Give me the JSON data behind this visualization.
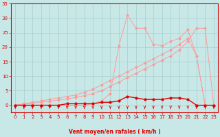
{
  "xlabel": "Vent moyen/en rafales ( km/h )",
  "bg_color": "#c8e8e8",
  "grid_color": "#a8cccc",
  "line_color_dark": "#dd0000",
  "line_color_light": "#ff9999",
  "xlim_min": -0.5,
  "xlim_max": 23.5,
  "ylim_min": 0,
  "ylim_max": 35,
  "yticks": [
    0,
    5,
    10,
    15,
    20,
    25,
    30,
    35
  ],
  "xticks": [
    0,
    1,
    2,
    3,
    4,
    5,
    6,
    7,
    8,
    9,
    10,
    11,
    12,
    13,
    14,
    15,
    16,
    17,
    18,
    19,
    20,
    21,
    22,
    23
  ],
  "x": [
    0,
    1,
    2,
    3,
    4,
    5,
    6,
    7,
    8,
    9,
    10,
    11,
    12,
    13,
    14,
    15,
    16,
    17,
    18,
    19,
    20,
    21,
    22,
    23
  ],
  "line_lin1": [
    0,
    0.5,
    1,
    1.5,
    2,
    2.5,
    3,
    3.5,
    4.5,
    5.5,
    7,
    8.5,
    10,
    11.5,
    13,
    14.5,
    16,
    17.5,
    19,
    21,
    23,
    17,
    0,
    0
  ],
  "line_lin2": [
    0,
    0.3,
    0.7,
    1,
    1.4,
    1.8,
    2.2,
    2.7,
    3.3,
    4,
    5,
    6.5,
    8,
    9.5,
    11,
    12.5,
    14,
    15.5,
    17,
    19,
    22,
    26.5,
    26.5,
    0
  ],
  "line_peak": [
    0,
    0,
    0,
    0,
    0,
    0,
    0,
    0,
    0,
    0.5,
    1.5,
    4,
    20.5,
    31,
    26.5,
    26.5,
    21,
    20.5,
    22,
    23,
    26,
    17,
    0,
    0
  ],
  "line_dark": [
    0,
    0,
    0,
    0,
    0,
    0,
    0.5,
    0.5,
    0.5,
    0.5,
    1,
    1,
    1.5,
    3,
    2.5,
    2,
    2,
    2,
    2.5,
    2.5,
    2,
    0,
    0,
    0
  ]
}
